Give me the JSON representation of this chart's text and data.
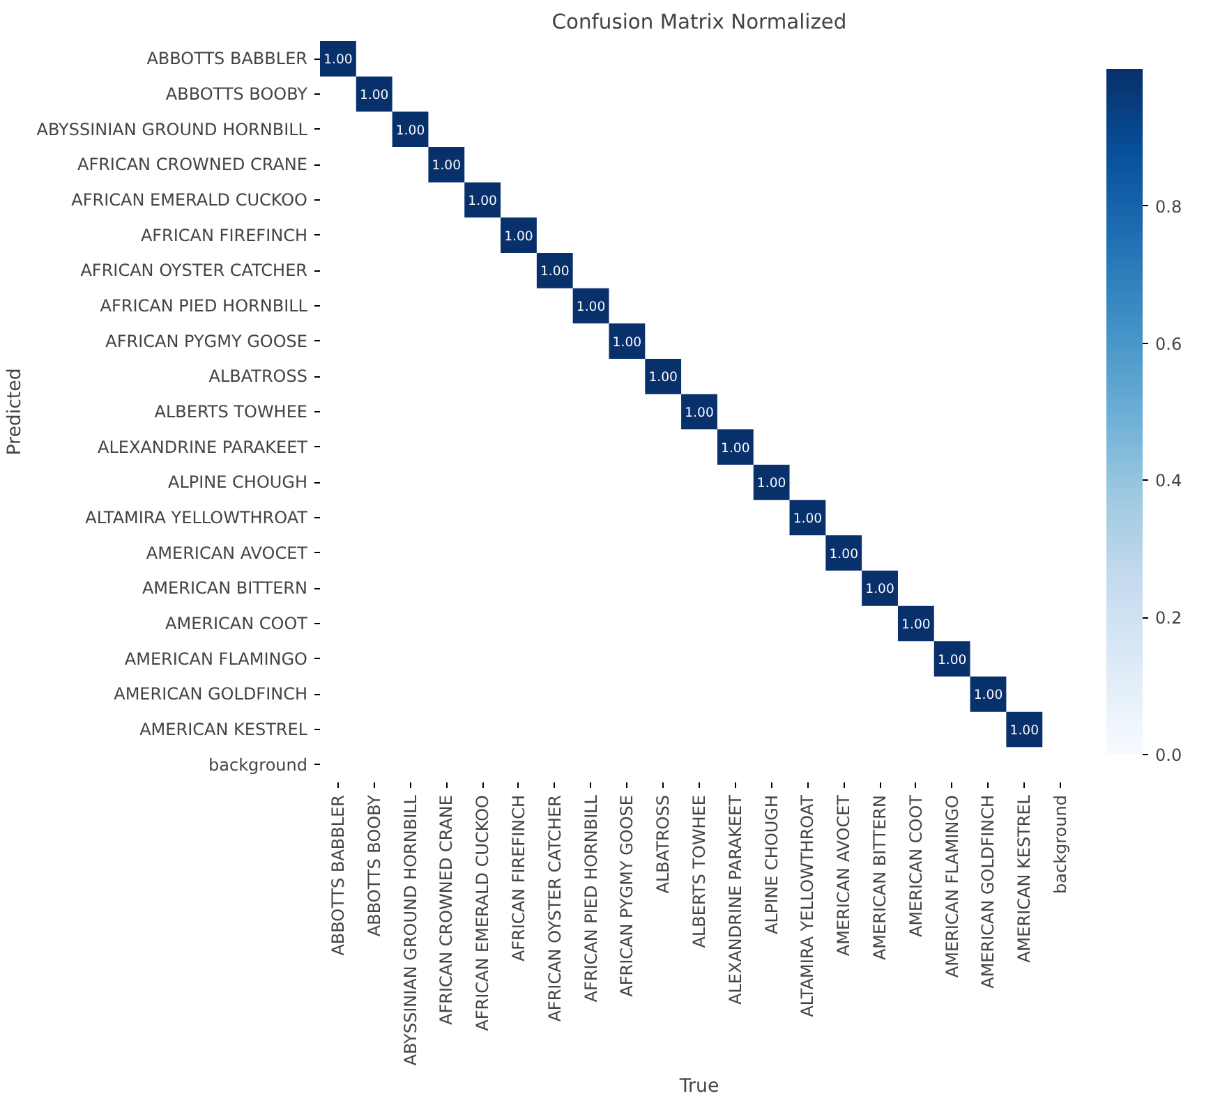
{
  "chart_data": {
    "type": "heatmap",
    "title": "Confusion Matrix Normalized",
    "xlabel": "True",
    "ylabel": "Predicted",
    "categories": [
      "ABBOTTS BABBLER",
      "ABBOTTS BOOBY",
      "ABYSSINIAN GROUND HORNBILL",
      "AFRICAN CROWNED CRANE",
      "AFRICAN EMERALD CUCKOO",
      "AFRICAN FIREFINCH",
      "AFRICAN OYSTER CATCHER",
      "AFRICAN PIED HORNBILL",
      "AFRICAN PYGMY GOOSE",
      "ALBATROSS",
      "ALBERTS TOWHEE",
      "ALEXANDRINE PARAKEET",
      "ALPINE CHOUGH",
      "ALTAMIRA YELLOWTHROAT",
      "AMERICAN AVOCET",
      "AMERICAN BITTERN",
      "AMERICAN COOT",
      "AMERICAN FLAMINGO",
      "AMERICAN GOLDFINCH",
      "AMERICAN KESTREL",
      "background"
    ],
    "y_categories": [
      "ABBOTTS BABBLER",
      "ABBOTTS BOOBY",
      "ABYSSINIAN GROUND HORNBILL",
      "AFRICAN CROWNED CRANE",
      "AFRICAN EMERALD CUCKOO",
      "AFRICAN FIREFINCH",
      "AFRICAN OYSTER CATCHER",
      "AFRICAN PIED HORNBILL",
      "AFRICAN PYGMY GOOSE",
      "ALBATROSS",
      "ALBERTS TOWHEE",
      "ALEXANDRINE PARAKEET",
      "ALPINE CHOUGH",
      "ALTAMIRA YELLOWTHROAT",
      "AMERICAN AVOCET",
      "AMERICAN BITTERN",
      "AMERICAN COOT",
      "AMERICAN FLAMINGO",
      "AMERICAN GOLDFINCH",
      "AMERICAN KESTREL",
      "background"
    ],
    "cells": [
      [
        1,
        null,
        null,
        null,
        null,
        null,
        null,
        null,
        null,
        null,
        null,
        null,
        null,
        null,
        null,
        null,
        null,
        null,
        null,
        null,
        null
      ],
      [
        null,
        1,
        null,
        null,
        null,
        null,
        null,
        null,
        null,
        null,
        null,
        null,
        null,
        null,
        null,
        null,
        null,
        null,
        null,
        null,
        null
      ],
      [
        null,
        null,
        1,
        null,
        null,
        null,
        null,
        null,
        null,
        null,
        null,
        null,
        null,
        null,
        null,
        null,
        null,
        null,
        null,
        null,
        null
      ],
      [
        null,
        null,
        null,
        1,
        null,
        null,
        null,
        null,
        null,
        null,
        null,
        null,
        null,
        null,
        null,
        null,
        null,
        null,
        null,
        null,
        null
      ],
      [
        null,
        null,
        null,
        null,
        1,
        null,
        null,
        null,
        null,
        null,
        null,
        null,
        null,
        null,
        null,
        null,
        null,
        null,
        null,
        null,
        null
      ],
      [
        null,
        null,
        null,
        null,
        null,
        1,
        null,
        null,
        null,
        null,
        null,
        null,
        null,
        null,
        null,
        null,
        null,
        null,
        null,
        null,
        null
      ],
      [
        null,
        null,
        null,
        null,
        null,
        null,
        1,
        null,
        null,
        null,
        null,
        null,
        null,
        null,
        null,
        null,
        null,
        null,
        null,
        null,
        null
      ],
      [
        null,
        null,
        null,
        null,
        null,
        null,
        null,
        1,
        null,
        null,
        null,
        null,
        null,
        null,
        null,
        null,
        null,
        null,
        null,
        null,
        null
      ],
      [
        null,
        null,
        null,
        null,
        null,
        null,
        null,
        null,
        1,
        null,
        null,
        null,
        null,
        null,
        null,
        null,
        null,
        null,
        null,
        null,
        null
      ],
      [
        null,
        null,
        null,
        null,
        null,
        null,
        null,
        null,
        null,
        1,
        null,
        null,
        null,
        null,
        null,
        null,
        null,
        null,
        null,
        null,
        null
      ],
      [
        null,
        null,
        null,
        null,
        null,
        null,
        null,
        null,
        null,
        null,
        1,
        null,
        null,
        null,
        null,
        null,
        null,
        null,
        null,
        null,
        null
      ],
      [
        null,
        null,
        null,
        null,
        null,
        null,
        null,
        null,
        null,
        null,
        null,
        1,
        null,
        null,
        null,
        null,
        null,
        null,
        null,
        null,
        null
      ],
      [
        null,
        null,
        null,
        null,
        null,
        null,
        null,
        null,
        null,
        null,
        null,
        null,
        1,
        null,
        null,
        null,
        null,
        null,
        null,
        null,
        null
      ],
      [
        null,
        null,
        null,
        null,
        null,
        null,
        null,
        null,
        null,
        null,
        null,
        null,
        null,
        1,
        null,
        null,
        null,
        null,
        null,
        null,
        null
      ],
      [
        null,
        null,
        null,
        null,
        null,
        null,
        null,
        null,
        null,
        null,
        null,
        null,
        null,
        null,
        1,
        null,
        null,
        null,
        null,
        null,
        null
      ],
      [
        null,
        null,
        null,
        null,
        null,
        null,
        null,
        null,
        null,
        null,
        null,
        null,
        null,
        null,
        null,
        1,
        null,
        null,
        null,
        null,
        null
      ],
      [
        null,
        null,
        null,
        null,
        null,
        null,
        null,
        null,
        null,
        null,
        null,
        null,
        null,
        null,
        null,
        null,
        1,
        null,
        null,
        null,
        null
      ],
      [
        null,
        null,
        null,
        null,
        null,
        null,
        null,
        null,
        null,
        null,
        null,
        null,
        null,
        null,
        null,
        null,
        null,
        1,
        null,
        null,
        null
      ],
      [
        null,
        null,
        null,
        null,
        null,
        null,
        null,
        null,
        null,
        null,
        null,
        null,
        null,
        null,
        null,
        null,
        null,
        null,
        1,
        null,
        null
      ],
      [
        null,
        null,
        null,
        null,
        null,
        null,
        null,
        null,
        null,
        null,
        null,
        null,
        null,
        null,
        null,
        null,
        null,
        null,
        null,
        1,
        null
      ],
      [
        null,
        null,
        null,
        null,
        null,
        null,
        null,
        null,
        null,
        null,
        null,
        null,
        null,
        null,
        null,
        null,
        null,
        null,
        null,
        null,
        null
      ]
    ],
    "cell_labels": [
      [
        "1.00",
        null,
        null,
        null,
        null,
        null,
        null,
        null,
        null,
        null,
        null,
        null,
        null,
        null,
        null,
        null,
        null,
        null,
        null,
        null,
        null
      ],
      [
        null,
        "1.00",
        null,
        null,
        null,
        null,
        null,
        null,
        null,
        null,
        null,
        null,
        null,
        null,
        null,
        null,
        null,
        null,
        null,
        null,
        null
      ],
      [
        null,
        null,
        "1.00",
        null,
        null,
        null,
        null,
        null,
        null,
        null,
        null,
        null,
        null,
        null,
        null,
        null,
        null,
        null,
        null,
        null,
        null
      ],
      [
        null,
        null,
        null,
        "1.00",
        null,
        null,
        null,
        null,
        null,
        null,
        null,
        null,
        null,
        null,
        null,
        null,
        null,
        null,
        null,
        null,
        null
      ],
      [
        null,
        null,
        null,
        null,
        "1.00",
        null,
        null,
        null,
        null,
        null,
        null,
        null,
        null,
        null,
        null,
        null,
        null,
        null,
        null,
        null,
        null
      ],
      [
        null,
        null,
        null,
        null,
        null,
        "1.00",
        null,
        null,
        null,
        null,
        null,
        null,
        null,
        null,
        null,
        null,
        null,
        null,
        null,
        null,
        null
      ],
      [
        null,
        null,
        null,
        null,
        null,
        null,
        "1.00",
        null,
        null,
        null,
        null,
        null,
        null,
        null,
        null,
        null,
        null,
        null,
        null,
        null,
        null
      ],
      [
        null,
        null,
        null,
        null,
        null,
        null,
        null,
        "1.00",
        null,
        null,
        null,
        null,
        null,
        null,
        null,
        null,
        null,
        null,
        null,
        null,
        null
      ],
      [
        null,
        null,
        null,
        null,
        null,
        null,
        null,
        null,
        "1.00",
        null,
        null,
        null,
        null,
        null,
        null,
        null,
        null,
        null,
        null,
        null,
        null
      ],
      [
        null,
        null,
        null,
        null,
        null,
        null,
        null,
        null,
        null,
        "1.00",
        null,
        null,
        null,
        null,
        null,
        null,
        null,
        null,
        null,
        null,
        null
      ],
      [
        null,
        null,
        null,
        null,
        null,
        null,
        null,
        null,
        null,
        null,
        "1.00",
        null,
        null,
        null,
        null,
        null,
        null,
        null,
        null,
        null,
        null
      ],
      [
        null,
        null,
        null,
        null,
        null,
        null,
        null,
        null,
        null,
        null,
        null,
        "1.00",
        null,
        null,
        null,
        null,
        null,
        null,
        null,
        null,
        null
      ],
      [
        null,
        null,
        null,
        null,
        null,
        null,
        null,
        null,
        null,
        null,
        null,
        null,
        "1.00",
        null,
        null,
        null,
        null,
        null,
        null,
        null,
        null
      ],
      [
        null,
        null,
        null,
        null,
        null,
        null,
        null,
        null,
        null,
        null,
        null,
        null,
        null,
        "1.00",
        null,
        null,
        null,
        null,
        null,
        null,
        null
      ],
      [
        null,
        null,
        null,
        null,
        null,
        null,
        null,
        null,
        null,
        null,
        null,
        null,
        null,
        null,
        "1.00",
        null,
        null,
        null,
        null,
        null,
        null
      ],
      [
        null,
        null,
        null,
        null,
        null,
        null,
        null,
        null,
        null,
        null,
        null,
        null,
        null,
        null,
        null,
        "1.00",
        null,
        null,
        null,
        null,
        null
      ],
      [
        null,
        null,
        null,
        null,
        null,
        null,
        null,
        null,
        null,
        null,
        null,
        null,
        null,
        null,
        null,
        null,
        "1.00",
        null,
        null,
        null,
        null
      ],
      [
        null,
        null,
        null,
        null,
        null,
        null,
        null,
        null,
        null,
        null,
        null,
        null,
        null,
        null,
        null,
        null,
        null,
        "1.00",
        null,
        null,
        null
      ],
      [
        null,
        null,
        null,
        null,
        null,
        null,
        null,
        null,
        null,
        null,
        null,
        null,
        null,
        null,
        null,
        null,
        null,
        null,
        "1.00",
        null,
        null
      ],
      [
        null,
        null,
        null,
        null,
        null,
        null,
        null,
        null,
        null,
        null,
        null,
        null,
        null,
        null,
        null,
        null,
        null,
        null,
        null,
        "1.00",
        null
      ],
      [
        null,
        null,
        null,
        null,
        null,
        null,
        null,
        null,
        null,
        null,
        null,
        null,
        null,
        null,
        null,
        null,
        null,
        null,
        null,
        null,
        null
      ]
    ],
    "clim": [
      0,
      1
    ],
    "cticks": [
      {
        "value": 0,
        "label": "0.0"
      },
      0.2,
      0.4,
      0.6,
      0.8
    ]
  }
}
